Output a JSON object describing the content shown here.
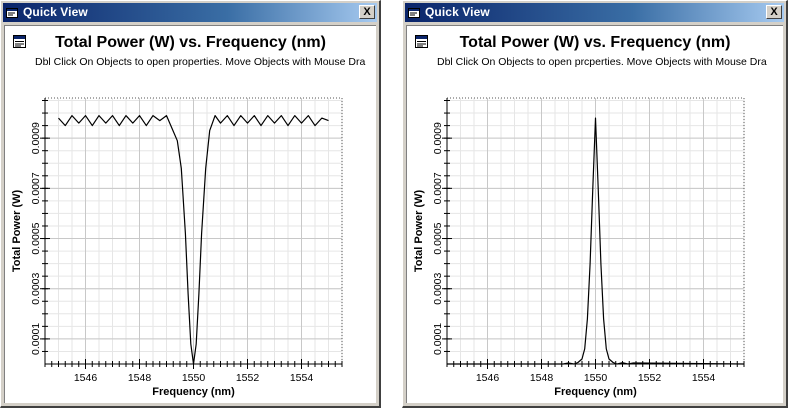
{
  "windows": [
    {
      "id": "left",
      "title": "Quick View",
      "close_label": "X",
      "chart_title": "Total Power (W) vs. Frequency (nm)",
      "hint": "Dbl Click On Objects to open properties.  Move Objects with Mouse Dra"
    },
    {
      "id": "right",
      "title": "Quick View",
      "close_label": "X",
      "chart_title": "Total Power (W) vs. Frequency (nm)",
      "hint": "Dbl Click On Objects to open prcperties.  Move Objects with Mouse Dra"
    }
  ],
  "icons": {
    "title_icon": "quick-view-window-icon",
    "plot_icon": "chart-properties-icon"
  },
  "colors": {
    "titlebar_start": "#0a246a",
    "titlebar_end": "#a6caf0",
    "trace": "#000000",
    "grid": "#c8c8c8"
  },
  "chart_data": [
    {
      "type": "line",
      "title": "Total Power (W) vs. Frequency (nm)",
      "xlabel": "Frequency (nm)",
      "ylabel": "Total Power (W)",
      "xlim": [
        1544.5,
        1555.5
      ],
      "ylim": [
        0,
        0.00106
      ],
      "xticks": [
        1546,
        1548,
        1550,
        1552,
        1554
      ],
      "yticks": [
        0.0001,
        0.0003,
        0.0005,
        0.0007,
        0.0009
      ],
      "grid": true,
      "series": [
        {
          "x": [
            1545.0,
            1545.25,
            1545.5,
            1545.75,
            1546.0,
            1546.25,
            1546.5,
            1546.75,
            1547.0,
            1547.25,
            1547.5,
            1547.75,
            1548.0,
            1548.25,
            1548.5,
            1548.75,
            1549.0,
            1549.2,
            1549.4,
            1549.55,
            1549.7,
            1549.8,
            1549.9,
            1550.0,
            1550.1,
            1550.2,
            1550.3,
            1550.45,
            1550.6,
            1550.8,
            1551.0,
            1551.25,
            1551.5,
            1551.75,
            1552.0,
            1552.25,
            1552.5,
            1552.75,
            1553.0,
            1553.25,
            1553.5,
            1553.75,
            1554.0,
            1554.25,
            1554.5,
            1554.75,
            1555.0
          ],
          "y": [
            0.00098,
            0.00095,
            0.00099,
            0.00096,
            0.00099,
            0.00095,
            0.00099,
            0.00096,
            0.00099,
            0.00095,
            0.00099,
            0.00096,
            0.00099,
            0.00095,
            0.00099,
            0.00097,
            0.00099,
            0.00094,
            0.00089,
            0.00078,
            0.00052,
            0.00028,
            8e-05,
            0.0,
            8e-05,
            0.00028,
            0.00052,
            0.00078,
            0.00093,
            0.00099,
            0.00096,
            0.00099,
            0.00095,
            0.00099,
            0.00096,
            0.00099,
            0.00095,
            0.00099,
            0.00096,
            0.00099,
            0.00095,
            0.00099,
            0.00096,
            0.00099,
            0.00095,
            0.00098,
            0.00097
          ]
        }
      ]
    },
    {
      "type": "line",
      "title": "Total Power (W) vs. Frequency (nm)",
      "xlabel": "Frequency (nm)",
      "ylabel": "Total Power (W)",
      "xlim": [
        1544.5,
        1555.5
      ],
      "ylim": [
        0,
        0.00106
      ],
      "xticks": [
        1546,
        1548,
        1550,
        1552,
        1554
      ],
      "yticks": [
        0.0001,
        0.0003,
        0.0005,
        0.0007,
        0.0009
      ],
      "grid": true,
      "series": [
        {
          "x": [
            1544.5,
            1548.8,
            1549.0,
            1549.2,
            1549.35,
            1549.5,
            1549.6,
            1549.7,
            1549.8,
            1549.9,
            1550.0,
            1550.1,
            1550.2,
            1550.3,
            1550.4,
            1550.5,
            1550.65,
            1550.8,
            1551.0,
            1551.2,
            1551.4,
            1555.5
          ],
          "y": [
            0.0,
            0.0,
            4e-06,
            0.0,
            6e-06,
            2e-05,
            6e-05,
            0.00018,
            0.0004,
            0.0007,
            0.00098,
            0.0007,
            0.0004,
            0.00018,
            6e-05,
            2e-05,
            6e-06,
            0.0,
            5e-06,
            0.0,
            4e-06,
            0.0
          ]
        }
      ]
    }
  ]
}
